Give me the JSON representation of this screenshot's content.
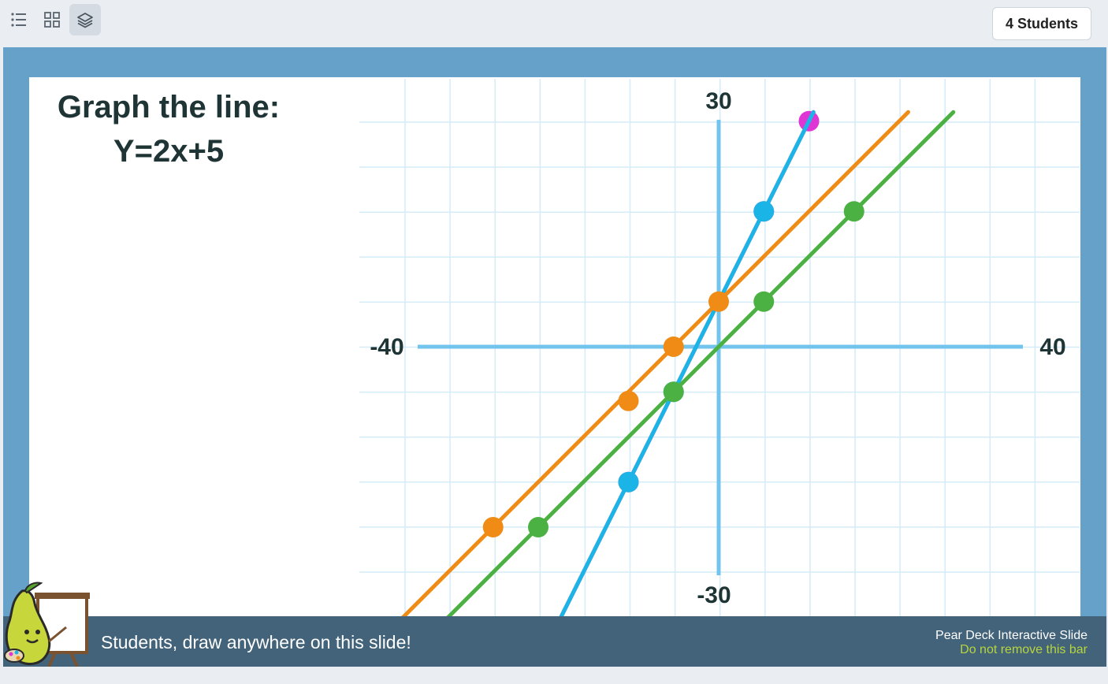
{
  "toolbar": {
    "views": [
      {
        "name": "list",
        "icon": "list-icon"
      },
      {
        "name": "grid",
        "icon": "grid-icon"
      },
      {
        "name": "layers",
        "icon": "layers-icon",
        "active": true
      }
    ],
    "students_label": "4 Students"
  },
  "slide": {
    "prompt_line1": "Graph the line:",
    "prompt_line2": "Y=2x+5",
    "axis_labels": {
      "y_top": "30",
      "y_bottom": "-30",
      "x_left": "-40",
      "x_right": "40"
    },
    "bottom_bar": {
      "message": "Students, draw anywhere on this slide!",
      "brand_line1": "Pear Deck Interactive Slide",
      "brand_line2": "Do not remove this bar"
    },
    "colors": {
      "frame": "#65a1c8",
      "axes": "#72c4ec",
      "grid": "#d4ecf8",
      "bar": "#43637a",
      "magenta": "#e035d5",
      "cyan": "#1ab4e6",
      "orange": "#f08c16",
      "green": "#4bb142"
    },
    "student_lines": [
      {
        "color": "magenta",
        "points": [
          [
            -10,
            -15
          ],
          [
            5,
            15
          ],
          [
            10,
            25
          ]
        ]
      },
      {
        "color": "cyan",
        "points": [
          [
            -10,
            -15
          ],
          [
            -5,
            -5
          ],
          [
            5,
            15
          ]
        ]
      },
      {
        "color": "orange",
        "points": [
          [
            -25,
            -20
          ],
          [
            -10,
            -6
          ],
          [
            -5,
            0
          ],
          [
            0,
            5
          ]
        ]
      },
      {
        "color": "green",
        "points": [
          [
            -20,
            -20
          ],
          [
            -5,
            -5
          ],
          [
            5,
            5
          ],
          [
            15,
            15
          ]
        ]
      }
    ]
  }
}
